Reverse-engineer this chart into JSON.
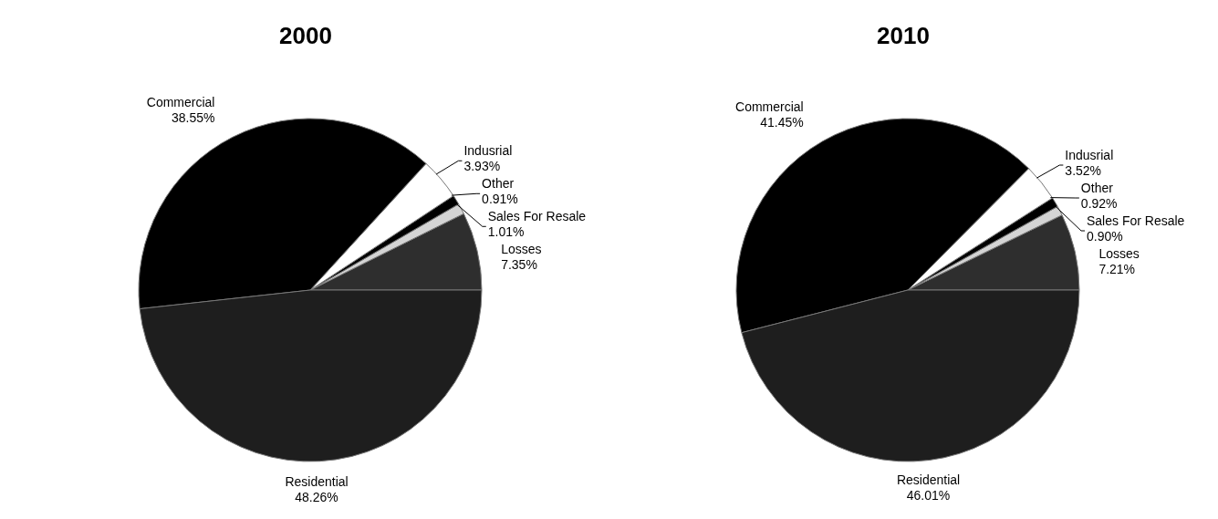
{
  "chart_data": [
    {
      "type": "pie",
      "title": "2000",
      "categories": [
        "Losses",
        "Sales For Resale",
        "Other",
        "Indusrial",
        "Commercial",
        "Residential"
      ],
      "values": [
        7.35,
        1.01,
        0.91,
        3.93,
        38.55,
        48.26
      ],
      "value_labels": [
        "7.35%",
        "1.01%",
        "0.91%",
        "3.93%",
        "38.55%",
        "48.26%"
      ],
      "colors": [
        "#2e2e2e",
        "#d4d4d4",
        "#000000",
        "#ffffff",
        "#000000",
        "#1e1e1e"
      ]
    },
    {
      "type": "pie",
      "title": "2010",
      "categories": [
        "Losses",
        "Sales For Resale",
        "Other",
        "Indusrial",
        "Commercial",
        "Residential"
      ],
      "values": [
        7.21,
        0.9,
        0.92,
        3.52,
        41.45,
        46.01
      ],
      "value_labels": [
        "7.21%",
        "0.90%",
        "0.92%",
        "3.52%",
        "41.45%",
        "46.01%"
      ],
      "colors": [
        "#2e2e2e",
        "#d4d4d4",
        "#000000",
        "#ffffff",
        "#000000",
        "#1e1e1e"
      ]
    }
  ]
}
